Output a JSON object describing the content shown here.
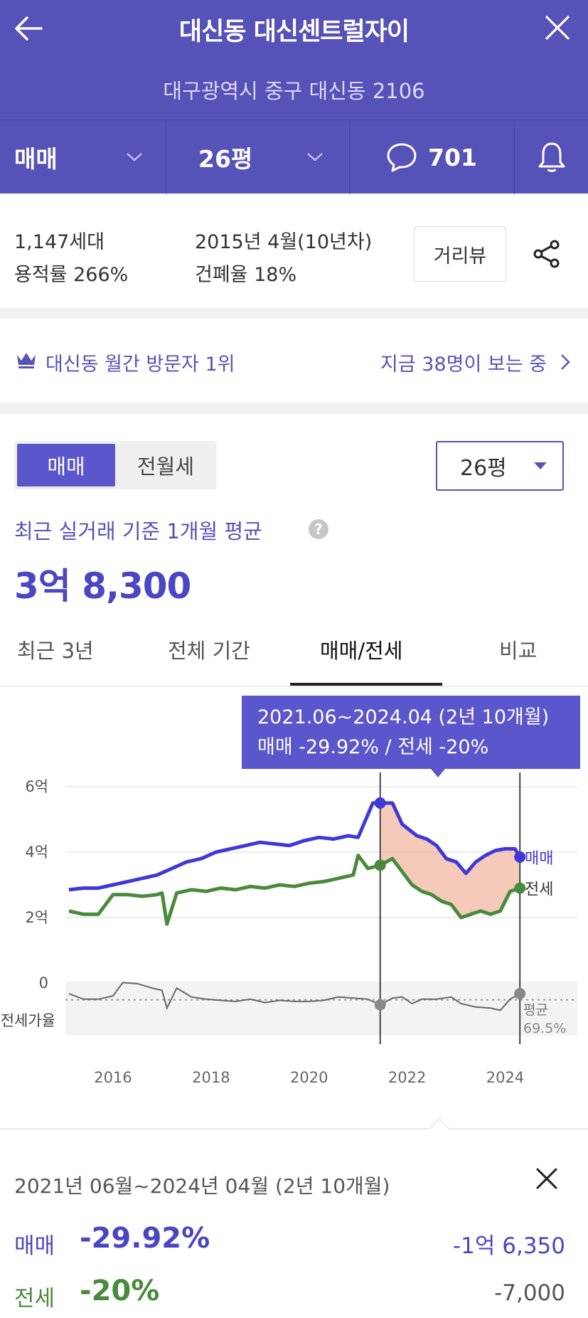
{
  "header": {
    "title": "대신동 대신센트럴자이",
    "address": "대구광역시 중구 대신동 2106",
    "filters": {
      "trade_type": "매매",
      "size": "26평",
      "comment_count": "701"
    }
  },
  "info": {
    "households": "1,147세대",
    "floor_area_ratio": "용적률 266%",
    "built": "2015년 4월(10년차)",
    "building_coverage": "건폐율 18%",
    "street_view_label": "거리뷰"
  },
  "visitors": {
    "rank": "대신동 월간 방문자 1위",
    "watching": "지금 38명이 보는 중"
  },
  "price": {
    "segments": [
      "매매",
      "전월세"
    ],
    "size_select": "26평",
    "avg_label": "최근 실거래 기준 1개월 평균",
    "avg_value": "3억 8,300"
  },
  "tabs": [
    "최근 3년",
    "전체 기간",
    "매매/전세",
    "비교"
  ],
  "tooltip": {
    "period": "2021.06~2024.04 (2년 10개월)",
    "change": "매매 -29.92%  /  전세 -20%"
  },
  "chart_data": {
    "type": "line",
    "y_ticks": [
      "6억",
      "4억",
      "2억",
      "0"
    ],
    "x_ticks": [
      "2016",
      "2018",
      "2020",
      "2022",
      "2024"
    ],
    "ylim": [
      0,
      6
    ],
    "y_unit": "억",
    "series": [
      {
        "name": "매매",
        "color": "#3f38d8",
        "x": [
          2015.1,
          2015.4,
          2015.7,
          2016.0,
          2016.3,
          2016.6,
          2016.9,
          2017.2,
          2017.5,
          2017.8,
          2018.1,
          2018.4,
          2018.7,
          2019.0,
          2019.3,
          2019.6,
          2019.9,
          2020.2,
          2020.5,
          2020.8,
          2021.0,
          2021.3,
          2021.45,
          2021.7,
          2021.9,
          2022.2,
          2022.4,
          2022.6,
          2022.8,
          2023.0,
          2023.2,
          2023.4,
          2023.6,
          2023.8,
          2024.0,
          2024.2,
          2024.3
        ],
        "values": [
          2.85,
          2.9,
          2.9,
          3.0,
          3.1,
          3.2,
          3.3,
          3.5,
          3.7,
          3.8,
          4.0,
          4.1,
          4.2,
          4.3,
          4.25,
          4.2,
          4.35,
          4.45,
          4.4,
          4.5,
          4.45,
          5.5,
          5.5,
          5.5,
          4.85,
          4.5,
          4.4,
          4.2,
          3.8,
          3.7,
          3.35,
          3.7,
          3.9,
          4.05,
          4.1,
          4.1,
          3.85
        ]
      },
      {
        "name": "전세",
        "color": "#4a8a3c",
        "x": [
          2015.1,
          2015.4,
          2015.7,
          2016.0,
          2016.3,
          2016.6,
          2016.9,
          2017.0,
          2017.1,
          2017.3,
          2017.6,
          2017.9,
          2018.2,
          2018.5,
          2018.8,
          2019.1,
          2019.4,
          2019.7,
          2020.0,
          2020.3,
          2020.6,
          2020.9,
          2021.0,
          2021.2,
          2021.45,
          2021.7,
          2021.9,
          2022.1,
          2022.3,
          2022.5,
          2022.7,
          2022.9,
          2023.1,
          2023.3,
          2023.5,
          2023.7,
          2023.9,
          2024.1,
          2024.3
        ],
        "values": [
          2.2,
          2.1,
          2.1,
          2.7,
          2.7,
          2.65,
          2.7,
          2.75,
          1.8,
          2.75,
          2.85,
          2.8,
          2.9,
          2.85,
          2.95,
          2.9,
          3.0,
          2.95,
          3.05,
          3.1,
          3.2,
          3.3,
          3.9,
          3.5,
          3.6,
          3.8,
          3.4,
          3.0,
          2.8,
          2.7,
          2.5,
          2.4,
          2.0,
          2.1,
          2.2,
          2.1,
          2.2,
          2.8,
          2.9
        ]
      }
    ],
    "jeonse_ratio": {
      "label": "전세가율",
      "avg_label": "평균",
      "avg_value": "69.5%",
      "x": [
        2015.1,
        2015.4,
        2015.7,
        2016.0,
        2016.2,
        2016.5,
        2016.8,
        2017.0,
        2017.1,
        2017.3,
        2017.6,
        2017.9,
        2018.2,
        2018.5,
        2018.8,
        2019.1,
        2019.4,
        2019.7,
        2020.0,
        2020.3,
        2020.6,
        2020.9,
        2021.2,
        2021.45,
        2021.7,
        2021.9,
        2022.1,
        2022.3,
        2022.6,
        2022.9,
        2023.1,
        2023.4,
        2023.7,
        2023.9,
        2024.1,
        2024.3
      ],
      "values": [
        75,
        70,
        70,
        73,
        85,
        84,
        80,
        78,
        62,
        80,
        72,
        70,
        69,
        68,
        70,
        67,
        69,
        68,
        68,
        69,
        72,
        71,
        70,
        65,
        71,
        72,
        66,
        70,
        70,
        72,
        66,
        63,
        62,
        60,
        70,
        75
      ]
    },
    "highlight": {
      "start": 2021.45,
      "end": 2024.3
    }
  },
  "panel": {
    "period": "2021년 06월~2024년 04월 (2년 10개월)",
    "sale": {
      "label": "매매",
      "pct": "-29.92%",
      "amount": "-1억 6,350"
    },
    "jeonse": {
      "label": "전세",
      "pct": "-20%",
      "amount": "-7,000"
    }
  }
}
